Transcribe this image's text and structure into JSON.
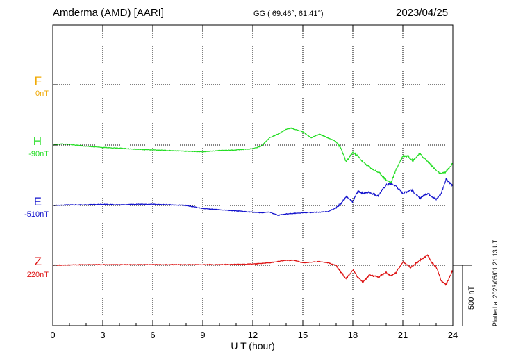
{
  "header": {
    "station": "Amderma (AMD)  [AARI]",
    "coords": "GG ( 69.46°,  61.41°)",
    "date": "2023/04/25"
  },
  "footer": {
    "plotted": "Plotted at 2023/05/01 21:13 UT"
  },
  "chart_data": {
    "type": "line",
    "xlabel": "U T (hour)",
    "xlim": [
      0,
      24
    ],
    "xticks": [
      0,
      3,
      6,
      9,
      12,
      15,
      18,
      21,
      24
    ],
    "x_tick_labels": [
      "0",
      "3",
      "6",
      "9",
      "12",
      "15",
      "18",
      "21",
      "24"
    ],
    "grid": true,
    "scale_bar": {
      "label": "500 nT",
      "value_nT": 500
    },
    "series": [
      {
        "name": "F",
        "offset_label": "0nT",
        "color": "#f0a800",
        "x": [],
        "y": []
      },
      {
        "name": "H",
        "offset_label": "-90nT",
        "color": "#22dd22",
        "x": [
          0,
          0.5,
          1,
          2,
          3,
          4,
          5,
          6,
          7,
          8,
          9,
          10,
          11,
          12,
          12.5,
          13,
          13.5,
          14,
          14.3,
          15,
          15.5,
          16,
          16.5,
          17,
          17.3,
          17.6,
          18,
          18.3,
          18.6,
          19,
          19.3,
          19.6,
          20,
          20.3,
          20.6,
          21,
          21.3,
          21.6,
          22,
          22.3,
          22.6,
          23,
          23.3,
          23.6,
          24
        ],
        "y": [
          0,
          10,
          5,
          -10,
          -20,
          -25,
          -35,
          -40,
          -45,
          -50,
          -55,
          -45,
          -40,
          -30,
          -10,
          60,
          90,
          130,
          140,
          110,
          60,
          90,
          60,
          30,
          -30,
          -140,
          -60,
          -90,
          -140,
          -180,
          -210,
          -230,
          -290,
          -310,
          -200,
          -90,
          -90,
          -130,
          -70,
          -110,
          -150,
          -210,
          -240,
          -220,
          -150
        ]
      },
      {
        "name": "E",
        "offset_label": "-510nT",
        "color": "#1010cc",
        "x": [
          0,
          1,
          2,
          3,
          4,
          5,
          6,
          7,
          8,
          9,
          10,
          11,
          12,
          12.5,
          13,
          13.5,
          14,
          14.5,
          15,
          16,
          16.5,
          17,
          17.3,
          17.6,
          18,
          18.3,
          18.6,
          19,
          19.5,
          20,
          20.3,
          20.6,
          21,
          21.5,
          22,
          22.5,
          23,
          23.3,
          23.6,
          24
        ],
        "y": [
          0,
          5,
          5,
          10,
          5,
          10,
          10,
          5,
          0,
          -25,
          -35,
          -45,
          -55,
          -60,
          -55,
          -80,
          -70,
          -65,
          -60,
          -55,
          -50,
          -20,
          20,
          70,
          30,
          120,
          100,
          110,
          80,
          170,
          180,
          160,
          100,
          130,
          60,
          100,
          50,
          100,
          220,
          160
        ]
      },
      {
        "name": "Z",
        "offset_label": "220nT",
        "color": "#dd1111",
        "x": [
          0,
          2,
          4,
          6,
          8,
          10,
          12,
          13,
          14,
          14.5,
          15,
          16,
          16.5,
          17,
          17.3,
          17.6,
          18,
          18.3,
          18.6,
          19,
          19.5,
          20,
          20.3,
          20.6,
          21,
          21.5,
          22,
          22.5,
          22.8,
          23,
          23.3,
          23.6,
          24
        ],
        "y": [
          0,
          5,
          5,
          5,
          5,
          5,
          10,
          20,
          40,
          40,
          20,
          30,
          20,
          0,
          -60,
          -110,
          -40,
          -100,
          -140,
          -80,
          -100,
          -60,
          -90,
          -60,
          30,
          -20,
          40,
          80,
          10,
          -10,
          -130,
          -160,
          -40
        ]
      }
    ]
  }
}
